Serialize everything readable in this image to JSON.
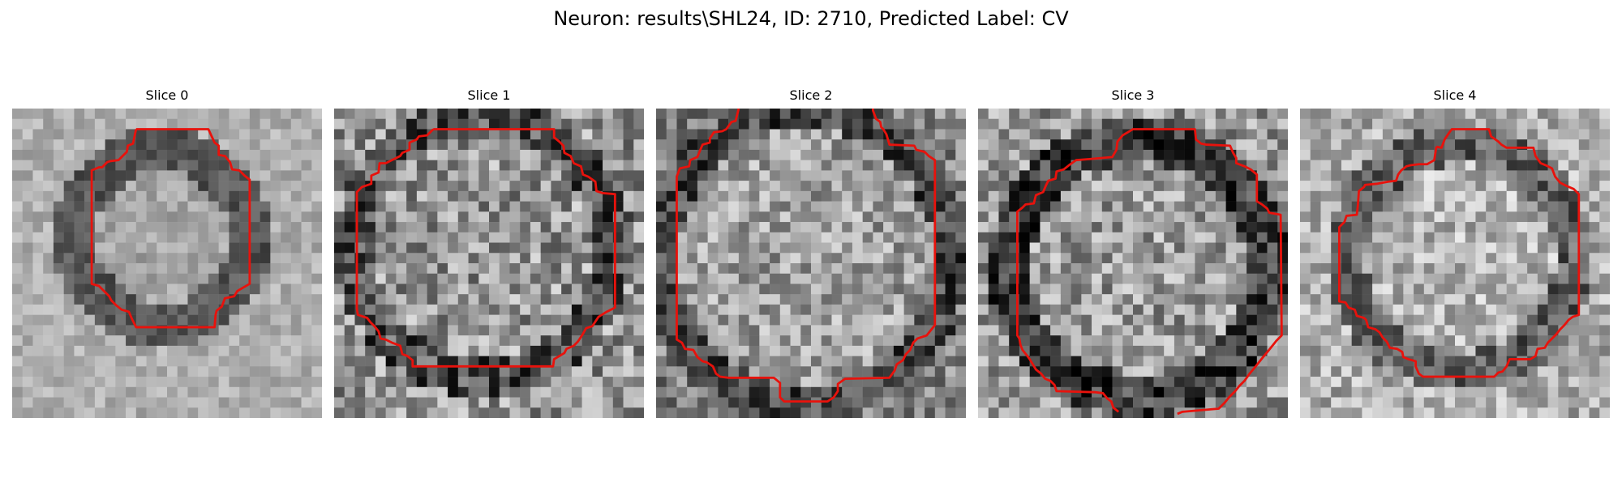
{
  "figure": {
    "suptitle": "Neuron: results\\SHL24, ID: 2710, Predicted Label: CV",
    "outline_color": "#e8120c"
  },
  "panels": [
    {
      "title": "Slice 0"
    },
    {
      "title": "Slice 1"
    },
    {
      "title": "Slice 2"
    },
    {
      "title": "Slice 3"
    },
    {
      "title": "Slice 4"
    }
  ]
}
